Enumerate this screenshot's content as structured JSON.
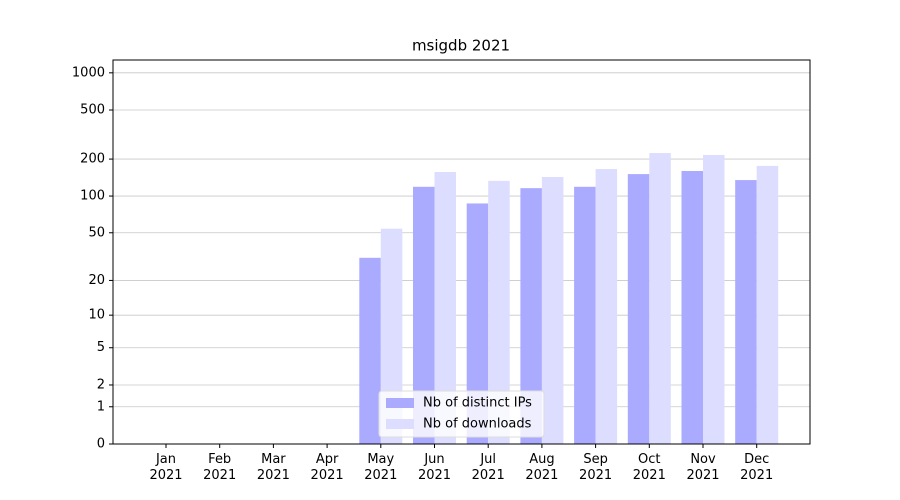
{
  "chart_data": {
    "type": "bar",
    "title": "msigdb 2021",
    "categories": [
      "Jan\n2021",
      "Feb\n2021",
      "Mar\n2021",
      "Apr\n2021",
      "May\n2021",
      "Jun\n2021",
      "Jul\n2021",
      "Aug\n2021",
      "Sep\n2021",
      "Oct\n2021",
      "Nov\n2021",
      "Dec\n2021"
    ],
    "series": [
      {
        "name": "Nb of distinct IPs",
        "color": "#aaaaff",
        "values": [
          0,
          0,
          0,
          0,
          31,
          119,
          87,
          116,
          119,
          151,
          160,
          135
        ]
      },
      {
        "name": "Nb of downloads",
        "color": "#ddddff",
        "values": [
          0,
          0,
          0,
          0,
          54,
          157,
          133,
          143,
          166,
          224,
          216,
          176
        ]
      }
    ],
    "yscale": "log1p",
    "ylim": [
      0,
      1270
    ],
    "yticks": [
      0,
      1,
      2,
      5,
      10,
      20,
      50,
      100,
      200,
      500,
      1000
    ],
    "grid": true,
    "legend": "lower center"
  }
}
